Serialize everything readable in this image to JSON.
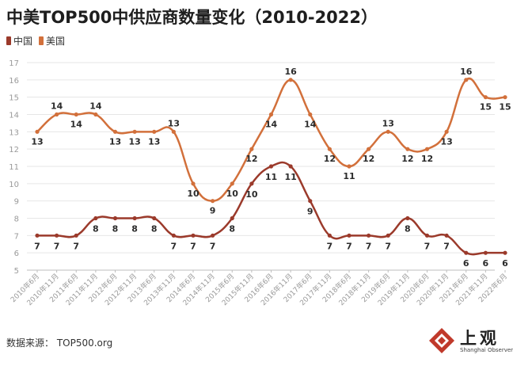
{
  "title": "中美TOP500中供应商数量变化（2010-2022）",
  "source": "数据来源： TOP500.org",
  "logo": {
    "name": "上观",
    "subtitle": "Shanghai Observer"
  },
  "colors": {
    "china": "#9b3a2b",
    "usa": "#d2703b",
    "grid": "#e6e6e6",
    "axis": "#bdbdbd",
    "tick_text": "#9a9a9a"
  },
  "chart_data": {
    "type": "line",
    "title": "中美TOP500中供应商数量变化（2010-2022）",
    "categories": [
      "2010年6月",
      "2010年11月",
      "2011年6月",
      "2011年11月",
      "2012年6月",
      "2012年11月",
      "2013年6月",
      "2013年11月",
      "2014年6月",
      "2014年11月",
      "2015年6月",
      "2015年11月",
      "2016年6月",
      "2016年11月",
      "2017年6月",
      "2017年11月",
      "2018年6月",
      "2018年11月",
      "2019年6月",
      "2019年11月",
      "2020年6月",
      "2020年11月",
      "2021年6月",
      "2021年11月",
      "2022年6月"
    ],
    "series": [
      {
        "name": "中国",
        "color": "#9b3a2b",
        "values": [
          7,
          7,
          7,
          8,
          8,
          8,
          8,
          7,
          7,
          7,
          8,
          10,
          11,
          11,
          9,
          7,
          7,
          7,
          7,
          8,
          7,
          7,
          6,
          6,
          6
        ]
      },
      {
        "name": "美国",
        "color": "#d2703b",
        "values": [
          13,
          14,
          14,
          14,
          13,
          13,
          13,
          13,
          10,
          9,
          10,
          12,
          14,
          16,
          14,
          12,
          11,
          12,
          13,
          12,
          12,
          13,
          16,
          15,
          15
        ]
      }
    ],
    "ylim": [
      5,
      17
    ],
    "yticks": [
      5,
      6,
      7,
      8,
      9,
      10,
      11,
      12,
      13,
      14,
      15,
      16,
      17
    ],
    "grid": true,
    "legend": "top-left",
    "data_labels": true
  }
}
